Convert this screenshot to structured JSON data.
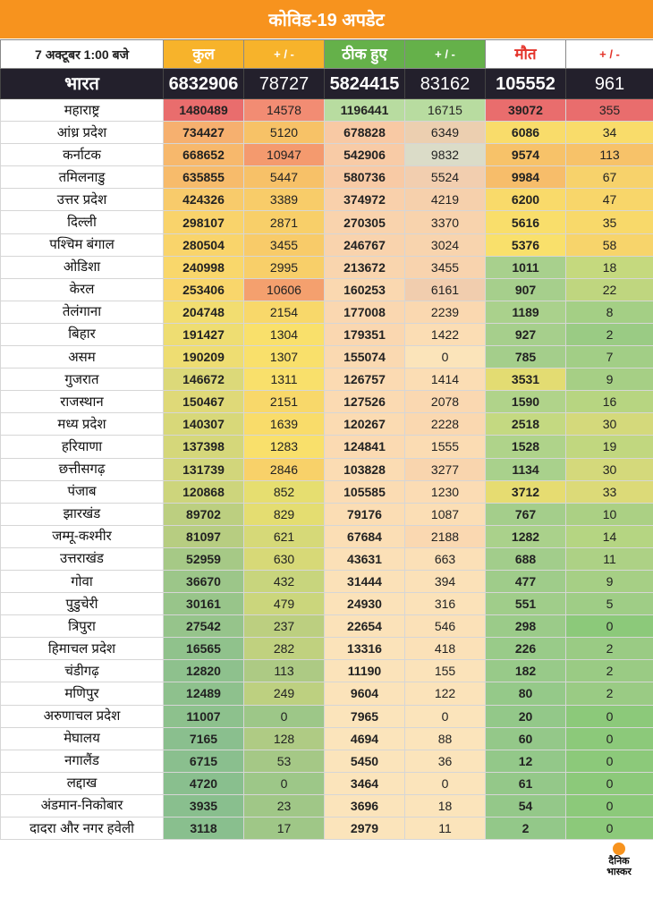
{
  "title": "कोविड-19 अपडेट",
  "colors": {
    "accent_orange": "#f7931e",
    "header_green": "#65b14a",
    "death_red": "#e4342b",
    "national_bg": "#23202c"
  },
  "header": {
    "date": "7 अक्टूबर 1:00 बजे",
    "total": "कुल",
    "total_delta": "+ / -",
    "recovered": "ठीक हुए",
    "recovered_delta": "+ / -",
    "deaths": "मौत",
    "deaths_delta": "+ / -"
  },
  "national": {
    "name": "भारत",
    "total": "6832906",
    "total_delta": "78727",
    "recovered": "5824415",
    "recovered_delta": "83162",
    "deaths": "105552",
    "deaths_delta": "961"
  },
  "rows": [
    {
      "name": "महाराष्ट्र",
      "total": "1480489",
      "total_delta": "14578",
      "recovered": "1196441",
      "recovered_delta": "16715",
      "deaths": "39072",
      "deaths_delta": "355",
      "colors": [
        "#e96d6d",
        "#f28c73",
        "#b8dca0",
        "#b8dca0",
        "#e96d6d",
        "#e96d6d"
      ]
    },
    {
      "name": "आंध्र प्रदेश",
      "total": "734427",
      "total_delta": "5120",
      "recovered": "678828",
      "recovered_delta": "6349",
      "deaths": "6086",
      "deaths_delta": "34",
      "colors": [
        "#f6b06f",
        "#f7c267",
        "#f8c9a4",
        "#eccfb0",
        "#f9dc6a",
        "#f9dc6a"
      ]
    },
    {
      "name": "कर्नाटक",
      "total": "668652",
      "total_delta": "10947",
      "recovered": "542906",
      "recovered_delta": "9832",
      "deaths": "9574",
      "deaths_delta": "113",
      "colors": [
        "#f7b86c",
        "#f49a6e",
        "#f8cba6",
        "#dbdcc8",
        "#f7c269",
        "#f7c269"
      ]
    },
    {
      "name": "तमिलनाडु",
      "total": "635855",
      "total_delta": "5447",
      "recovered": "580736",
      "recovered_delta": "5524",
      "deaths": "9984",
      "deaths_delta": "67",
      "colors": [
        "#f7bb6b",
        "#f7c168",
        "#f8caa5",
        "#f2ceaf",
        "#f7bd6a",
        "#f7d26b"
      ]
    },
    {
      "name": "उत्तर प्रदेश",
      "total": "424326",
      "total_delta": "3389",
      "recovered": "374972",
      "recovered_delta": "4219",
      "deaths": "6200",
      "deaths_delta": "47",
      "colors": [
        "#f8cb6b",
        "#f8cc69",
        "#f9d0ab",
        "#f6d0ac",
        "#f9da6a",
        "#f8d66a"
      ]
    },
    {
      "name": "दिल्ली",
      "total": "298107",
      "total_delta": "2871",
      "recovered": "270305",
      "recovered_delta": "3370",
      "deaths": "5616",
      "deaths_delta": "35",
      "colors": [
        "#f9d36b",
        "#f8cf69",
        "#f9d3ad",
        "#f8d3ad",
        "#f9de6b",
        "#f8d96a"
      ]
    },
    {
      "name": "पश्चिम बंगाल",
      "total": "280504",
      "total_delta": "3455",
      "recovered": "246767",
      "recovered_delta": "3024",
      "deaths": "5376",
      "deaths_delta": "58",
      "colors": [
        "#f9d46b",
        "#f8cb69",
        "#f9d3ad",
        "#f8d4ae",
        "#f9e06b",
        "#f7d46b"
      ]
    },
    {
      "name": "ओडिशा",
      "total": "240998",
      "total_delta": "2995",
      "recovered": "213672",
      "recovered_delta": "3455",
      "deaths": "1011",
      "deaths_delta": "18",
      "colors": [
        "#f9d76b",
        "#f8cf69",
        "#f9d5ae",
        "#f8d3ae",
        "#a8d08d",
        "#c5d97e"
      ]
    },
    {
      "name": "केरल",
      "total": "253406",
      "total_delta": "10606",
      "recovered": "160253",
      "recovered_delta": "6161",
      "deaths": "907",
      "deaths_delta": "22",
      "colors": [
        "#f9d66b",
        "#f4a06e",
        "#fad8b0",
        "#f1cdae",
        "#a6cf8c",
        "#bfd67f"
      ]
    },
    {
      "name": "तेलंगाना",
      "total": "204748",
      "total_delta": "2154",
      "recovered": "177008",
      "recovered_delta": "2239",
      "deaths": "1189",
      "deaths_delta": "8",
      "colors": [
        "#f2dd70",
        "#f8d86a",
        "#fad7b0",
        "#fad8b0",
        "#aad18c",
        "#a4cf85"
      ]
    },
    {
      "name": "बिहार",
      "total": "191427",
      "total_delta": "1304",
      "recovered": "179351",
      "recovered_delta": "1422",
      "deaths": "927",
      "deaths_delta": "2",
      "colors": [
        "#eedd72",
        "#f9e06b",
        "#fad7b0",
        "#fbddb4",
        "#a6cf8c",
        "#9acb84"
      ]
    },
    {
      "name": "असम",
      "total": "190209",
      "total_delta": "1307",
      "recovered": "155074",
      "recovered_delta": "0",
      "deaths": "785",
      "deaths_delta": "7",
      "colors": [
        "#eedd72",
        "#f9e06b",
        "#fad9b1",
        "#fbe4ba",
        "#a4ce8b",
        "#a2ce86"
      ]
    },
    {
      "name": "गुजरात",
      "total": "146672",
      "total_delta": "1311",
      "recovered": "126757",
      "recovered_delta": "1414",
      "deaths": "3531",
      "deaths_delta": "9",
      "colors": [
        "#dcd979",
        "#f9e06b",
        "#fbdab2",
        "#fbddb4",
        "#e3dc72",
        "#a6cf85"
      ]
    },
    {
      "name": "राजस्थान",
      "total": "150467",
      "total_delta": "2151",
      "recovered": "127526",
      "recovered_delta": "2078",
      "deaths": "1590",
      "deaths_delta": "16",
      "colors": [
        "#dfd978",
        "#f8d86a",
        "#fbdab2",
        "#fad8b1",
        "#b0d38a",
        "#b7d581"
      ]
    },
    {
      "name": "मध्य प्रदेश",
      "total": "140307",
      "total_delta": "1639",
      "recovered": "120267",
      "recovered_delta": "2228",
      "deaths": "2518",
      "deaths_delta": "30",
      "colors": [
        "#d8d879",
        "#f9dc6a",
        "#fbdbb2",
        "#fad8b0",
        "#c4d981",
        "#d4d97b"
      ]
    },
    {
      "name": "हरियाणा",
      "total": "137398",
      "total_delta": "1283",
      "recovered": "124841",
      "recovered_delta": "1555",
      "deaths": "1528",
      "deaths_delta": "19",
      "colors": [
        "#d5d77a",
        "#f9e06b",
        "#fbdab2",
        "#fbdcb3",
        "#afd38a",
        "#c1d77f"
      ]
    },
    {
      "name": "छत्तीसगढ़",
      "total": "131739",
      "total_delta": "2846",
      "recovered": "103828",
      "recovered_delta": "3277",
      "deaths": "1134",
      "deaths_delta": "30",
      "colors": [
        "#d2d67b",
        "#f8d169",
        "#fbdcb3",
        "#f9d5ae",
        "#a9d18c",
        "#d4d97b"
      ]
    },
    {
      "name": "पंजाब",
      "total": "120868",
      "total_delta": "852",
      "recovered": "105585",
      "recovered_delta": "1230",
      "deaths": "3712",
      "deaths_delta": "33",
      "colors": [
        "#cdd57c",
        "#e6de70",
        "#fbdcb3",
        "#fbdcb4",
        "#e6dc71",
        "#dcda78"
      ]
    },
    {
      "name": "झारखंड",
      "total": "89702",
      "total_delta": "829",
      "recovered": "79176",
      "recovered_delta": "1087",
      "deaths": "767",
      "deaths_delta": "10",
      "colors": [
        "#bccf80",
        "#e4dd71",
        "#fbddb4",
        "#fbdeb5",
        "#a4ce8b",
        "#abd084"
      ]
    },
    {
      "name": "जम्मू-कश्मीर",
      "total": "81097",
      "total_delta": "621",
      "recovered": "67684",
      "recovered_delta": "2188",
      "deaths": "1282",
      "deaths_delta": "14",
      "colors": [
        "#b7cd81",
        "#d6d978",
        "#fbdeb5",
        "#fad8b1",
        "#aad18b",
        "#b5d582"
      ]
    },
    {
      "name": "उत्तराखंड",
      "total": "52959",
      "total_delta": "630",
      "recovered": "43631",
      "recovered_delta": "663",
      "deaths": "688",
      "deaths_delta": "11",
      "colors": [
        "#a6c986",
        "#d7d977",
        "#fbe0b7",
        "#fbe0b7",
        "#a2cd8b",
        "#add185"
      ]
    },
    {
      "name": "गोवा",
      "total": "36670",
      "total_delta": "432",
      "recovered": "31444",
      "recovered_delta": "394",
      "deaths": "477",
      "deaths_delta": "9",
      "colors": [
        "#9cc689",
        "#c8d57d",
        "#fbe1b8",
        "#fbe1b8",
        "#9fcc8a",
        "#a6cf85"
      ]
    },
    {
      "name": "पुडुचेरी",
      "total": "30161",
      "total_delta": "479",
      "recovered": "24930",
      "recovered_delta": "316",
      "deaths": "551",
      "deaths_delta": "5",
      "colors": [
        "#98c58a",
        "#cbd67c",
        "#fbe2b9",
        "#fbe2b9",
        "#a0cd8a",
        "#9fcd86"
      ]
    },
    {
      "name": "त्रिपुरा",
      "total": "27542",
      "total_delta": "237",
      "recovered": "22654",
      "recovered_delta": "546",
      "deaths": "298",
      "deaths_delta": "0",
      "colors": [
        "#96c48b",
        "#bccf80",
        "#fbe2b9",
        "#fbe1b8",
        "#9bcb89",
        "#8cc97a"
      ]
    },
    {
      "name": "हिमाचल प्रदेश",
      "total": "16565",
      "total_delta": "282",
      "recovered": "13316",
      "recovered_delta": "418",
      "deaths": "226",
      "deaths_delta": "2",
      "colors": [
        "#90c28c",
        "#c0d17f",
        "#fbe3ba",
        "#fbe1b8",
        "#99cb89",
        "#9acb84"
      ]
    },
    {
      "name": "चंडीगढ़",
      "total": "12820",
      "total_delta": "113",
      "recovered": "11190",
      "recovered_delta": "155",
      "deaths": "182",
      "deaths_delta": "2",
      "colors": [
        "#8ec18d",
        "#adca84",
        "#fbe3ba",
        "#fbe3ba",
        "#98ca89",
        "#9acb84"
      ]
    },
    {
      "name": "मणिपुर",
      "total": "12489",
      "total_delta": "249",
      "recovered": "9604",
      "recovered_delta": "122",
      "deaths": "80",
      "deaths_delta": "2",
      "colors": [
        "#8ec18d",
        "#bdd080",
        "#fbe3ba",
        "#fbe3ba",
        "#95c989",
        "#9acb84"
      ]
    },
    {
      "name": "अरुणाचल प्रदेश",
      "total": "11007",
      "total_delta": "0",
      "recovered": "7965",
      "recovered_delta": "0",
      "deaths": "20",
      "deaths_delta": "0",
      "colors": [
        "#8dc18d",
        "#9dc788",
        "#fbe4bb",
        "#fbe4bb",
        "#93c889",
        "#8cc97a"
      ]
    },
    {
      "name": "मेघालय",
      "total": "7165",
      "total_delta": "128",
      "recovered": "4694",
      "recovered_delta": "88",
      "deaths": "60",
      "deaths_delta": "0",
      "colors": [
        "#8abf8e",
        "#afcb84",
        "#fbe4bb",
        "#fbe4bb",
        "#94c889",
        "#8cc97a"
      ]
    },
    {
      "name": "नगालैंड",
      "total": "6715",
      "total_delta": "53",
      "recovered": "5450",
      "recovered_delta": "36",
      "deaths": "12",
      "deaths_delta": "0",
      "colors": [
        "#8abf8e",
        "#a5c886",
        "#fbe4bb",
        "#fbe4bb",
        "#93c889",
        "#8cc97a"
      ]
    },
    {
      "name": "लद्दाख",
      "total": "4720",
      "total_delta": "0",
      "recovered": "3464",
      "recovered_delta": "0",
      "deaths": "61",
      "deaths_delta": "0",
      "colors": [
        "#89bf8e",
        "#9dc788",
        "#fbe4bb",
        "#fbe4bb",
        "#94c889",
        "#8cc97a"
      ]
    },
    {
      "name": "अंडमान-निकोबार",
      "total": "3935",
      "total_delta": "23",
      "recovered": "3696",
      "recovered_delta": "18",
      "deaths": "54",
      "deaths_delta": "0",
      "colors": [
        "#89bf8e",
        "#a0c787",
        "#fbe4bb",
        "#fbe4bb",
        "#94c889",
        "#8cc97a"
      ]
    },
    {
      "name": "दादरा और नगर हवेली",
      "total": "3118",
      "total_delta": "17",
      "recovered": "2979",
      "recovered_delta": "11",
      "deaths": "2",
      "deaths_delta": "0",
      "colors": [
        "#89bf8e",
        "#9fc787",
        "#fbe4bb",
        "#fbe4bb",
        "#93c889",
        "#8cc97a"
      ]
    }
  ],
  "logo": {
    "line1": "दैनिक",
    "line2": "भास्कर"
  }
}
